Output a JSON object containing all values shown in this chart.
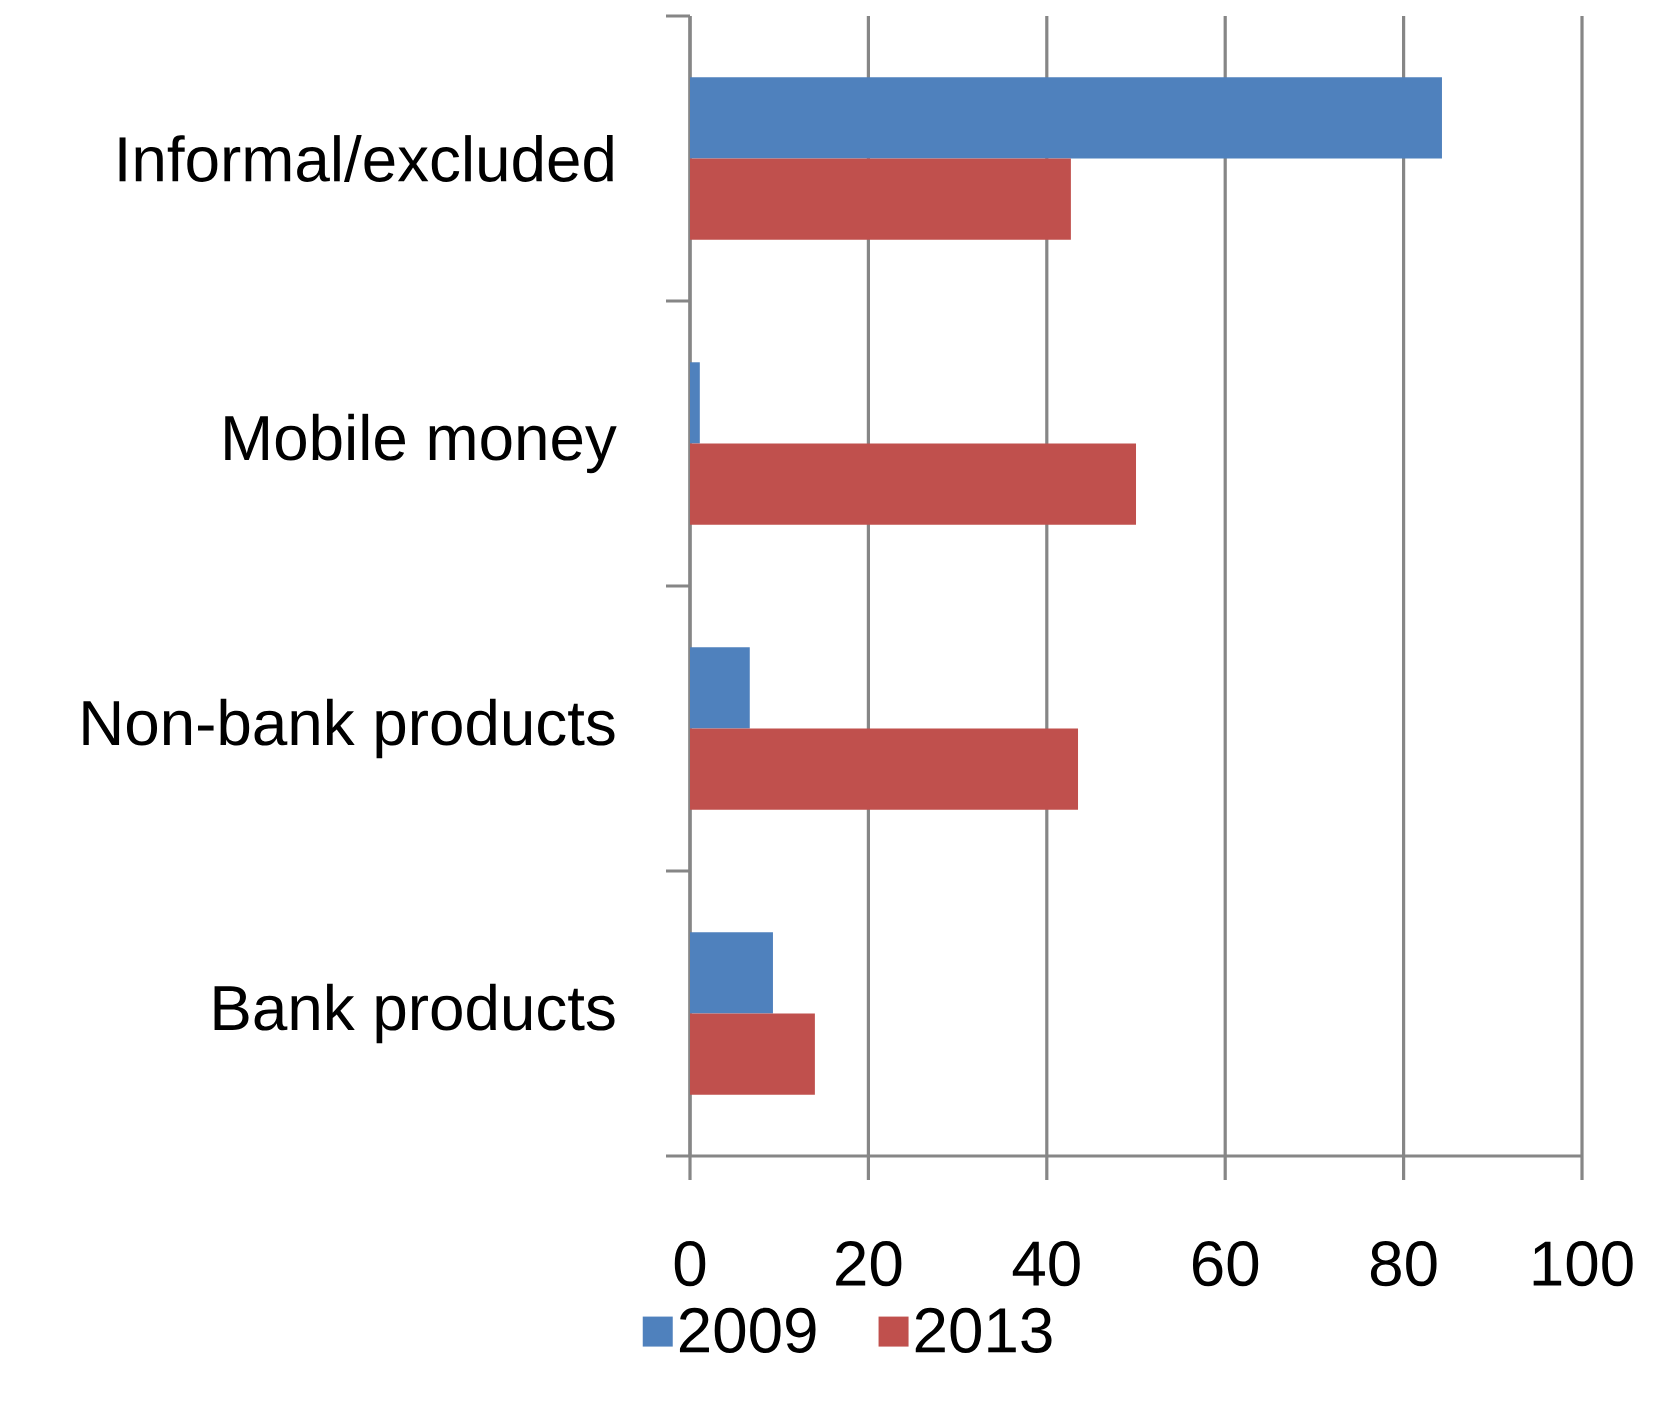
{
  "chart_data": {
    "type": "bar",
    "orientation": "horizontal",
    "categories": [
      "Informal/excluded",
      "Mobile money",
      "Non-bank products",
      "Bank products"
    ],
    "series": [
      {
        "name": "2009",
        "color": "#4f81bd",
        "values": [
          84.3,
          1.1,
          6.7,
          9.3
        ]
      },
      {
        "name": "2013",
        "color": "#c0504d",
        "values": [
          42.7,
          50.0,
          43.5,
          14.0
        ]
      }
    ],
    "xlim": [
      0,
      100
    ],
    "xticks": [
      0,
      20,
      40,
      60,
      80,
      100
    ],
    "grid": "x",
    "legend": "bottom"
  }
}
